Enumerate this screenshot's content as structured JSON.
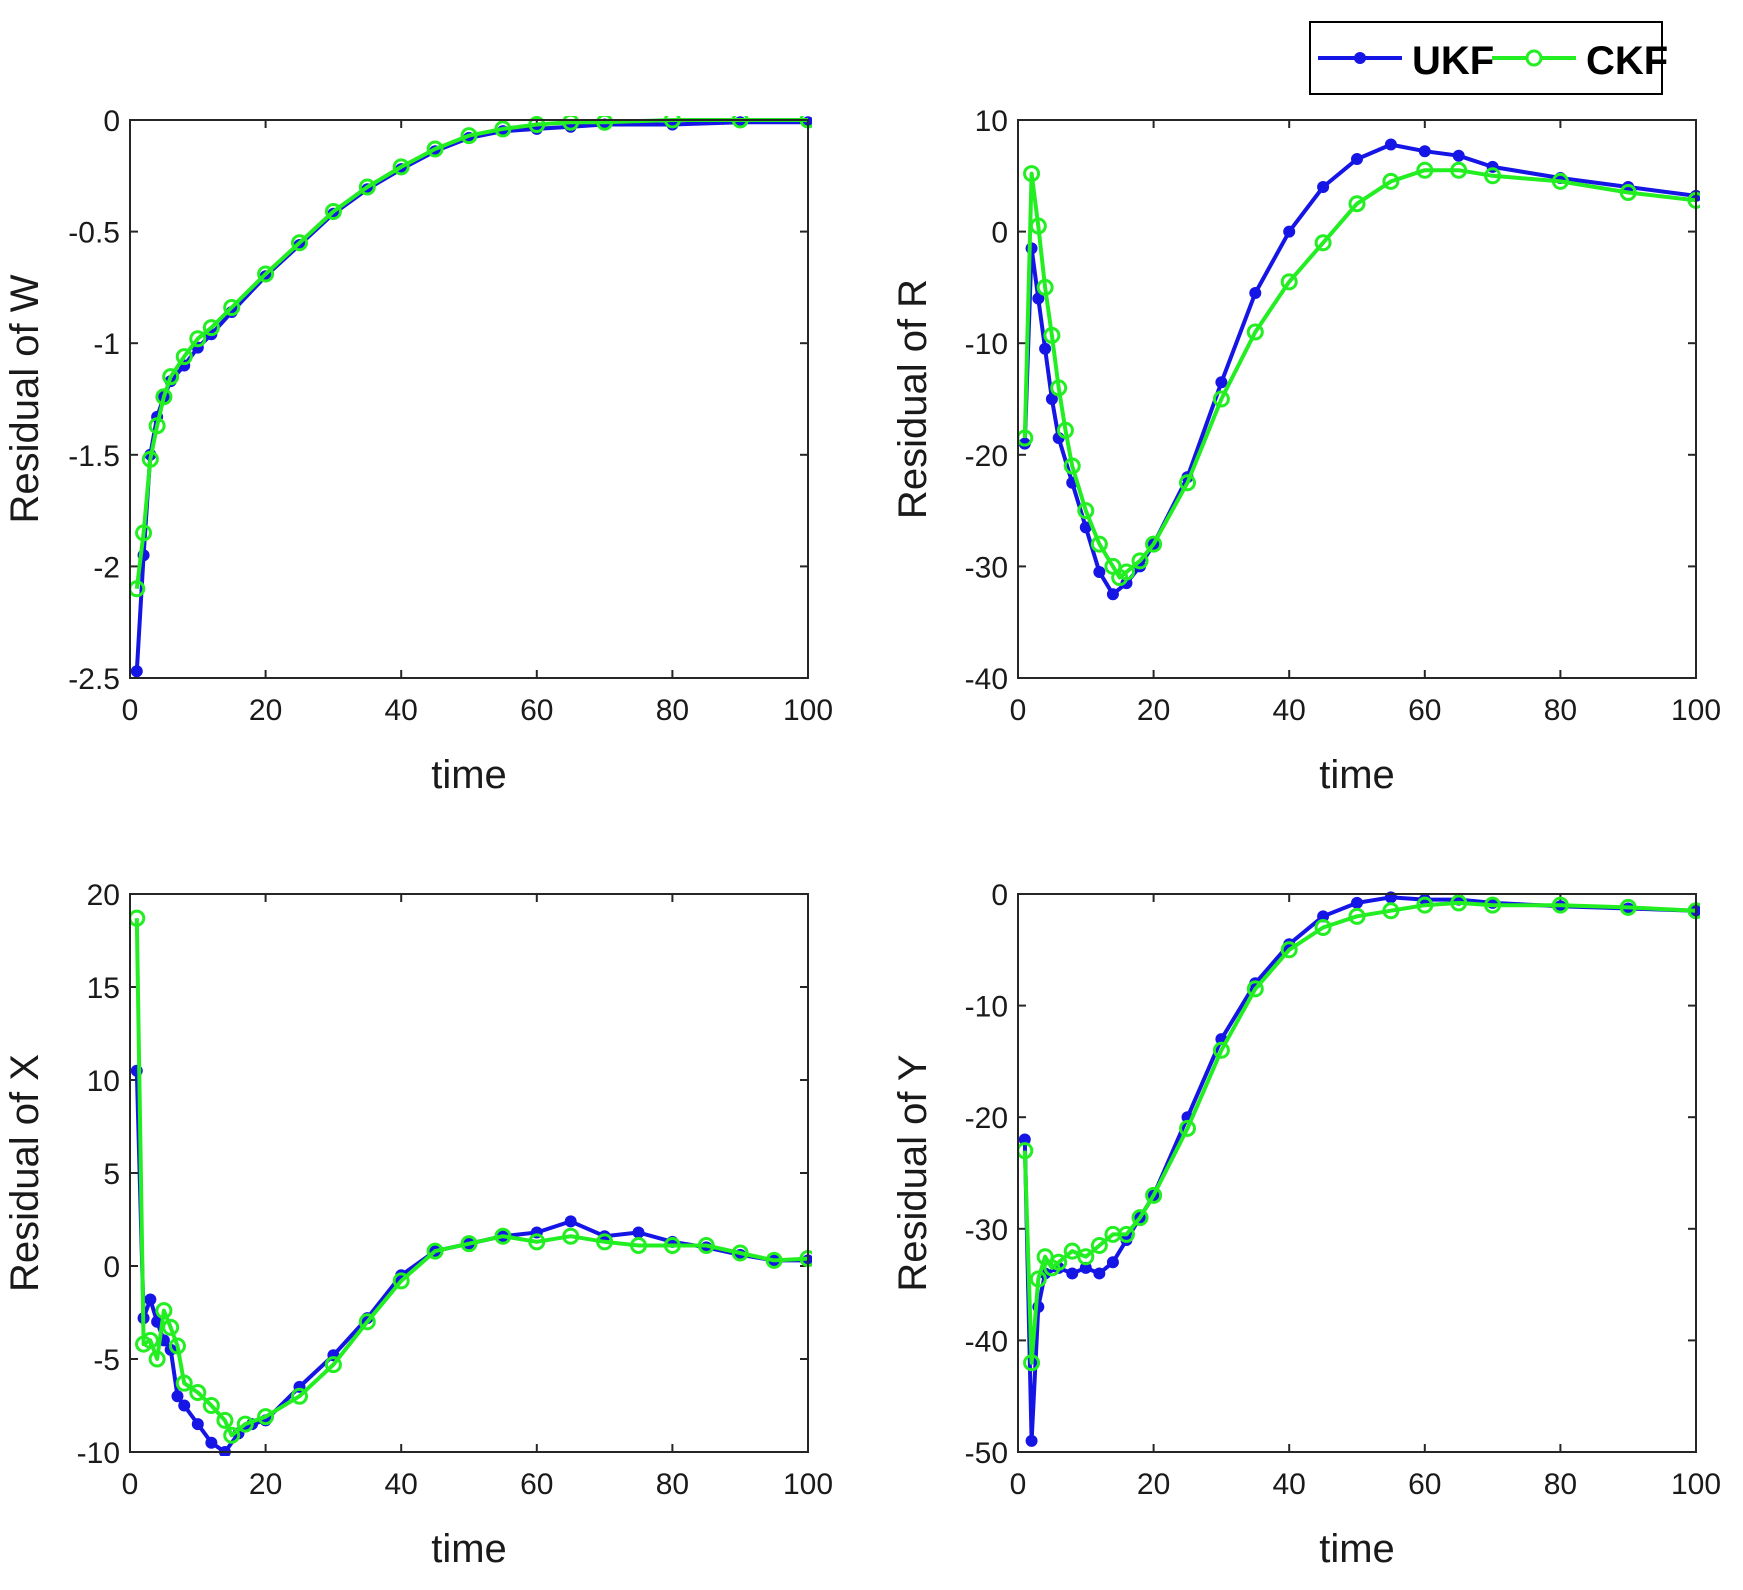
{
  "legend": {
    "entries": [
      {
        "name": "UKF",
        "color": "#1515e6",
        "marker": "asterisk"
      },
      {
        "name": "CKF",
        "color": "#22ee22",
        "marker": "circle"
      }
    ]
  },
  "chart_data": [
    {
      "type": "line",
      "xlabel": "time",
      "ylabel": "Residual of W",
      "xlim": [
        0,
        100
      ],
      "ylim": [
        -2.5,
        0
      ],
      "xticks": [
        0,
        20,
        40,
        60,
        80,
        100
      ],
      "yticks": [
        0,
        -0.5,
        -1,
        -1.5,
        -2,
        -2.5
      ],
      "ytick_labels": [
        "0",
        "-0.5",
        "-1",
        "-1.5",
        "-2",
        "-2.5"
      ],
      "series": [
        {
          "name": "UKF",
          "x": [
            1,
            2,
            3,
            4,
            5,
            6,
            8,
            10,
            12,
            15,
            20,
            25,
            30,
            35,
            40,
            45,
            50,
            55,
            60,
            65,
            70,
            80,
            90,
            100
          ],
          "y": [
            -2.47,
            -1.95,
            -1.5,
            -1.33,
            -1.24,
            -1.17,
            -1.1,
            -1.02,
            -0.96,
            -0.86,
            -0.7,
            -0.56,
            -0.42,
            -0.31,
            -0.22,
            -0.14,
            -0.08,
            -0.05,
            -0.04,
            -0.03,
            -0.02,
            -0.02,
            -0.01,
            -0.01
          ]
        },
        {
          "name": "CKF",
          "x": [
            1,
            2,
            3,
            4,
            5,
            6,
            8,
            10,
            12,
            15,
            20,
            25,
            30,
            35,
            40,
            45,
            50,
            55,
            60,
            65,
            70,
            80,
            90,
            100
          ],
          "y": [
            -2.1,
            -1.85,
            -1.52,
            -1.37,
            -1.24,
            -1.15,
            -1.06,
            -0.98,
            -0.93,
            -0.84,
            -0.69,
            -0.55,
            -0.41,
            -0.3,
            -0.21,
            -0.13,
            -0.07,
            -0.04,
            -0.02,
            -0.01,
            -0.01,
            0,
            0,
            0
          ]
        }
      ]
    },
    {
      "type": "line",
      "xlabel": "time",
      "ylabel": "Residual of R",
      "xlim": [
        0,
        100
      ],
      "ylim": [
        -40,
        10
      ],
      "xticks": [
        0,
        20,
        40,
        60,
        80,
        100
      ],
      "yticks": [
        10,
        0,
        -10,
        -20,
        -30,
        -40
      ],
      "ytick_labels": [
        "10",
        "0",
        "-10",
        "-20",
        "-30",
        "-40"
      ],
      "series": [
        {
          "name": "UKF",
          "x": [
            1,
            2,
            3,
            4,
            5,
            6,
            8,
            10,
            12,
            14,
            16,
            18,
            20,
            25,
            30,
            35,
            40,
            45,
            50,
            55,
            60,
            65,
            70,
            80,
            90,
            100
          ],
          "y": [
            -19,
            -1.5,
            -6,
            -10.5,
            -15,
            -18.5,
            -22.5,
            -26.5,
            -30.5,
            -32.5,
            -31.5,
            -30,
            -28,
            -22,
            -13.5,
            -5.5,
            0,
            4,
            6.5,
            7.8,
            7.2,
            6.8,
            5.8,
            4.8,
            4,
            3.2
          ]
        },
        {
          "name": "CKF",
          "x": [
            1,
            2,
            3,
            4,
            5,
            6,
            7,
            8,
            10,
            12,
            14,
            15,
            16,
            18,
            20,
            25,
            30,
            35,
            40,
            45,
            50,
            55,
            60,
            65,
            70,
            80,
            90,
            100
          ],
          "y": [
            -18.5,
            5.2,
            0.5,
            -5,
            -9.3,
            -14,
            -17.8,
            -21,
            -25,
            -28,
            -30,
            -31,
            -30.5,
            -29.5,
            -28,
            -22.5,
            -15,
            -9,
            -4.5,
            -1,
            2.5,
            4.5,
            5.5,
            5.5,
            5,
            4.5,
            3.5,
            2.8
          ]
        }
      ]
    },
    {
      "type": "line",
      "xlabel": "time",
      "ylabel": "Residual of X",
      "xlim": [
        0,
        100
      ],
      "ylim": [
        -10,
        20
      ],
      "xticks": [
        0,
        20,
        40,
        60,
        80,
        100
      ],
      "yticks": [
        20,
        15,
        10,
        5,
        0,
        -5,
        -10
      ],
      "ytick_labels": [
        "20",
        "15",
        "10",
        "5",
        "0",
        "-5",
        "-10"
      ],
      "series": [
        {
          "name": "UKF",
          "x": [
            1,
            2,
            3,
            4,
            5,
            6,
            7,
            8,
            10,
            12,
            14,
            16,
            18,
            20,
            25,
            30,
            35,
            40,
            45,
            50,
            55,
            60,
            65,
            70,
            75,
            80,
            85,
            90,
            95,
            100
          ],
          "y": [
            10.5,
            -2.8,
            -1.8,
            -3,
            -4,
            -4.5,
            -7,
            -7.5,
            -8.5,
            -9.5,
            -10,
            -9,
            -8.5,
            -8.3,
            -6.5,
            -4.8,
            -2.8,
            -0.5,
            0.8,
            1.2,
            1.6,
            1.8,
            2.4,
            1.6,
            1.8,
            1.3,
            1,
            0.6,
            0.3,
            0.3
          ]
        },
        {
          "name": "CKF",
          "x": [
            1,
            2,
            3,
            4,
            5,
            6,
            7,
            8,
            10,
            12,
            14,
            15,
            17,
            20,
            25,
            30,
            35,
            40,
            45,
            50,
            55,
            60,
            65,
            70,
            75,
            80,
            85,
            90,
            95,
            100
          ],
          "y": [
            18.7,
            -4.2,
            -4,
            -5,
            -2.4,
            -3.3,
            -4.3,
            -6.3,
            -6.8,
            -7.5,
            -8.3,
            -9.1,
            -8.5,
            -8.1,
            -7,
            -5.3,
            -3,
            -0.8,
            0.8,
            1.2,
            1.6,
            1.3,
            1.6,
            1.3,
            1.1,
            1.1,
            1.1,
            0.7,
            0.3,
            0.4
          ]
        }
      ]
    },
    {
      "type": "line",
      "xlabel": "time",
      "ylabel": "Residual of Y",
      "xlim": [
        0,
        100
      ],
      "ylim": [
        -50,
        0
      ],
      "xticks": [
        0,
        20,
        40,
        60,
        80,
        100
      ],
      "yticks": [
        0,
        -10,
        -20,
        -30,
        -40,
        -50
      ],
      "ytick_labels": [
        "0",
        "-10",
        "-20",
        "-30",
        "-40",
        "-50"
      ],
      "series": [
        {
          "name": "UKF",
          "x": [
            1,
            2,
            3,
            4,
            6,
            8,
            10,
            12,
            14,
            16,
            18,
            20,
            25,
            30,
            35,
            40,
            45,
            50,
            55,
            60,
            65,
            70,
            80,
            90,
            100
          ],
          "y": [
            -22,
            -49,
            -37,
            -34,
            -33.5,
            -34,
            -33.5,
            -34,
            -33,
            -31,
            -29,
            -27,
            -20,
            -13,
            -8,
            -4.5,
            -2,
            -0.8,
            -0.3,
            -0.5,
            -0.5,
            -0.8,
            -1.1,
            -1.3,
            -1.5
          ]
        },
        {
          "name": "CKF",
          "x": [
            1,
            2,
            3,
            4,
            5,
            6,
            8,
            10,
            12,
            14,
            16,
            18,
            20,
            25,
            30,
            35,
            40,
            45,
            50,
            55,
            60,
            65,
            70,
            80,
            90,
            100
          ],
          "y": [
            -23,
            -42,
            -34.5,
            -32.5,
            -33.5,
            -33,
            -32,
            -32.5,
            -31.5,
            -30.5,
            -30.5,
            -29,
            -27,
            -21,
            -14,
            -8.5,
            -5,
            -3,
            -2,
            -1.5,
            -1,
            -0.8,
            -1,
            -1,
            -1.2,
            -1.5
          ]
        }
      ]
    }
  ]
}
